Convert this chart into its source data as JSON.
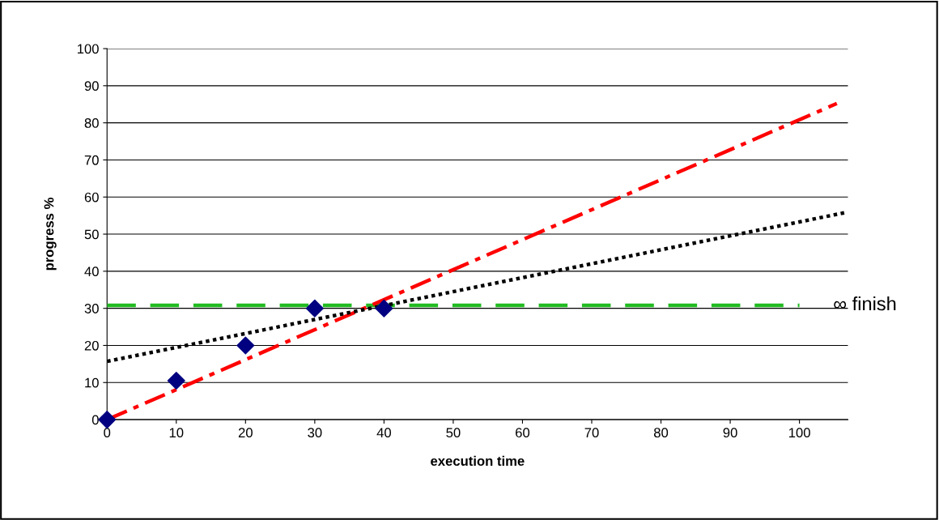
{
  "chart_data": {
    "type": "scatter",
    "xlabel": "execution time",
    "ylabel": "progress %",
    "x": [
      0,
      10,
      20,
      30,
      40
    ],
    "series": [
      {
        "color": "#000080",
        "marker": "diamond",
        "values": [
          0,
          10.5,
          20,
          30,
          30
        ]
      },
      {
        "type": "line",
        "color": "#ff0000",
        "line_style": "dashdot",
        "marker": "none",
        "x": [
          0,
          105.4
        ],
        "values": [
          0,
          85.2
        ]
      },
      {
        "type": "line",
        "color": "#000000",
        "line_style": "dotted",
        "marker": "none",
        "x": [
          0,
          106.9
        ],
        "values": [
          15.7,
          55.9
        ]
      }
    ],
    "ref_lines": [
      {
        "axis": "y",
        "value": 30.8,
        "label": "∞ finish",
        "color": "#22bb22",
        "line_style": "dashed"
      }
    ],
    "xlim": [
      0,
      107
    ],
    "xticks": [
      0,
      10,
      20,
      30,
      40,
      50,
      60,
      70,
      80,
      90,
      100
    ],
    "ylim": [
      0,
      100
    ],
    "yticks": [
      0,
      10,
      20,
      30,
      40,
      50,
      60,
      70,
      80,
      90,
      100
    ],
    "grid": "y",
    "legend": false
  }
}
